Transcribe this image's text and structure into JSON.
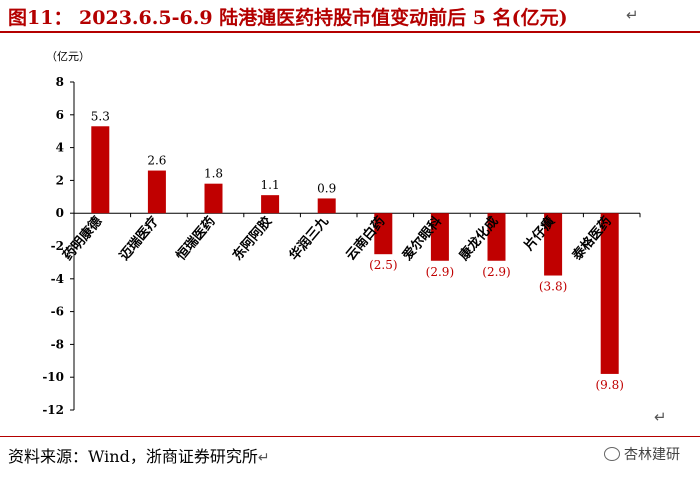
{
  "title": "图11： 2023.6.5-6.9 陆港通医药持股市值变动前后 5 名(亿元)",
  "footer": {
    "source": "资料来源：Wind，浙商证券研究所",
    "watermark": "杏林建研",
    "watermark_icon": "wechat-icon"
  },
  "colors": {
    "bar": "#c00000",
    "negative_label": "#c00000",
    "title": "#b40000"
  },
  "chart_data": {
    "type": "bar",
    "unit_label": "（亿元）",
    "categories": [
      "药明康德",
      "迈瑞医疗",
      "恒瑞医药",
      "东阿阿胶",
      "华润三九",
      "云南白药",
      "爱尔眼科",
      "康龙化成",
      "片仔癀",
      "泰格医药"
    ],
    "values": [
      5.3,
      2.6,
      1.8,
      1.1,
      0.9,
      -2.5,
      -2.9,
      -2.9,
      -3.8,
      -9.8
    ],
    "data_labels": [
      "5.3",
      "2.6",
      "1.8",
      "1.1",
      "0.9",
      "(2.5)",
      "(2.9)",
      "(2.9)",
      "(3.8)",
      "(9.8)"
    ],
    "ylim": [
      -12,
      8
    ],
    "yticks": [
      8,
      6,
      4,
      2,
      0,
      -2,
      -4,
      -6,
      -8,
      -10,
      -12
    ],
    "grid": false,
    "legend": "none"
  }
}
